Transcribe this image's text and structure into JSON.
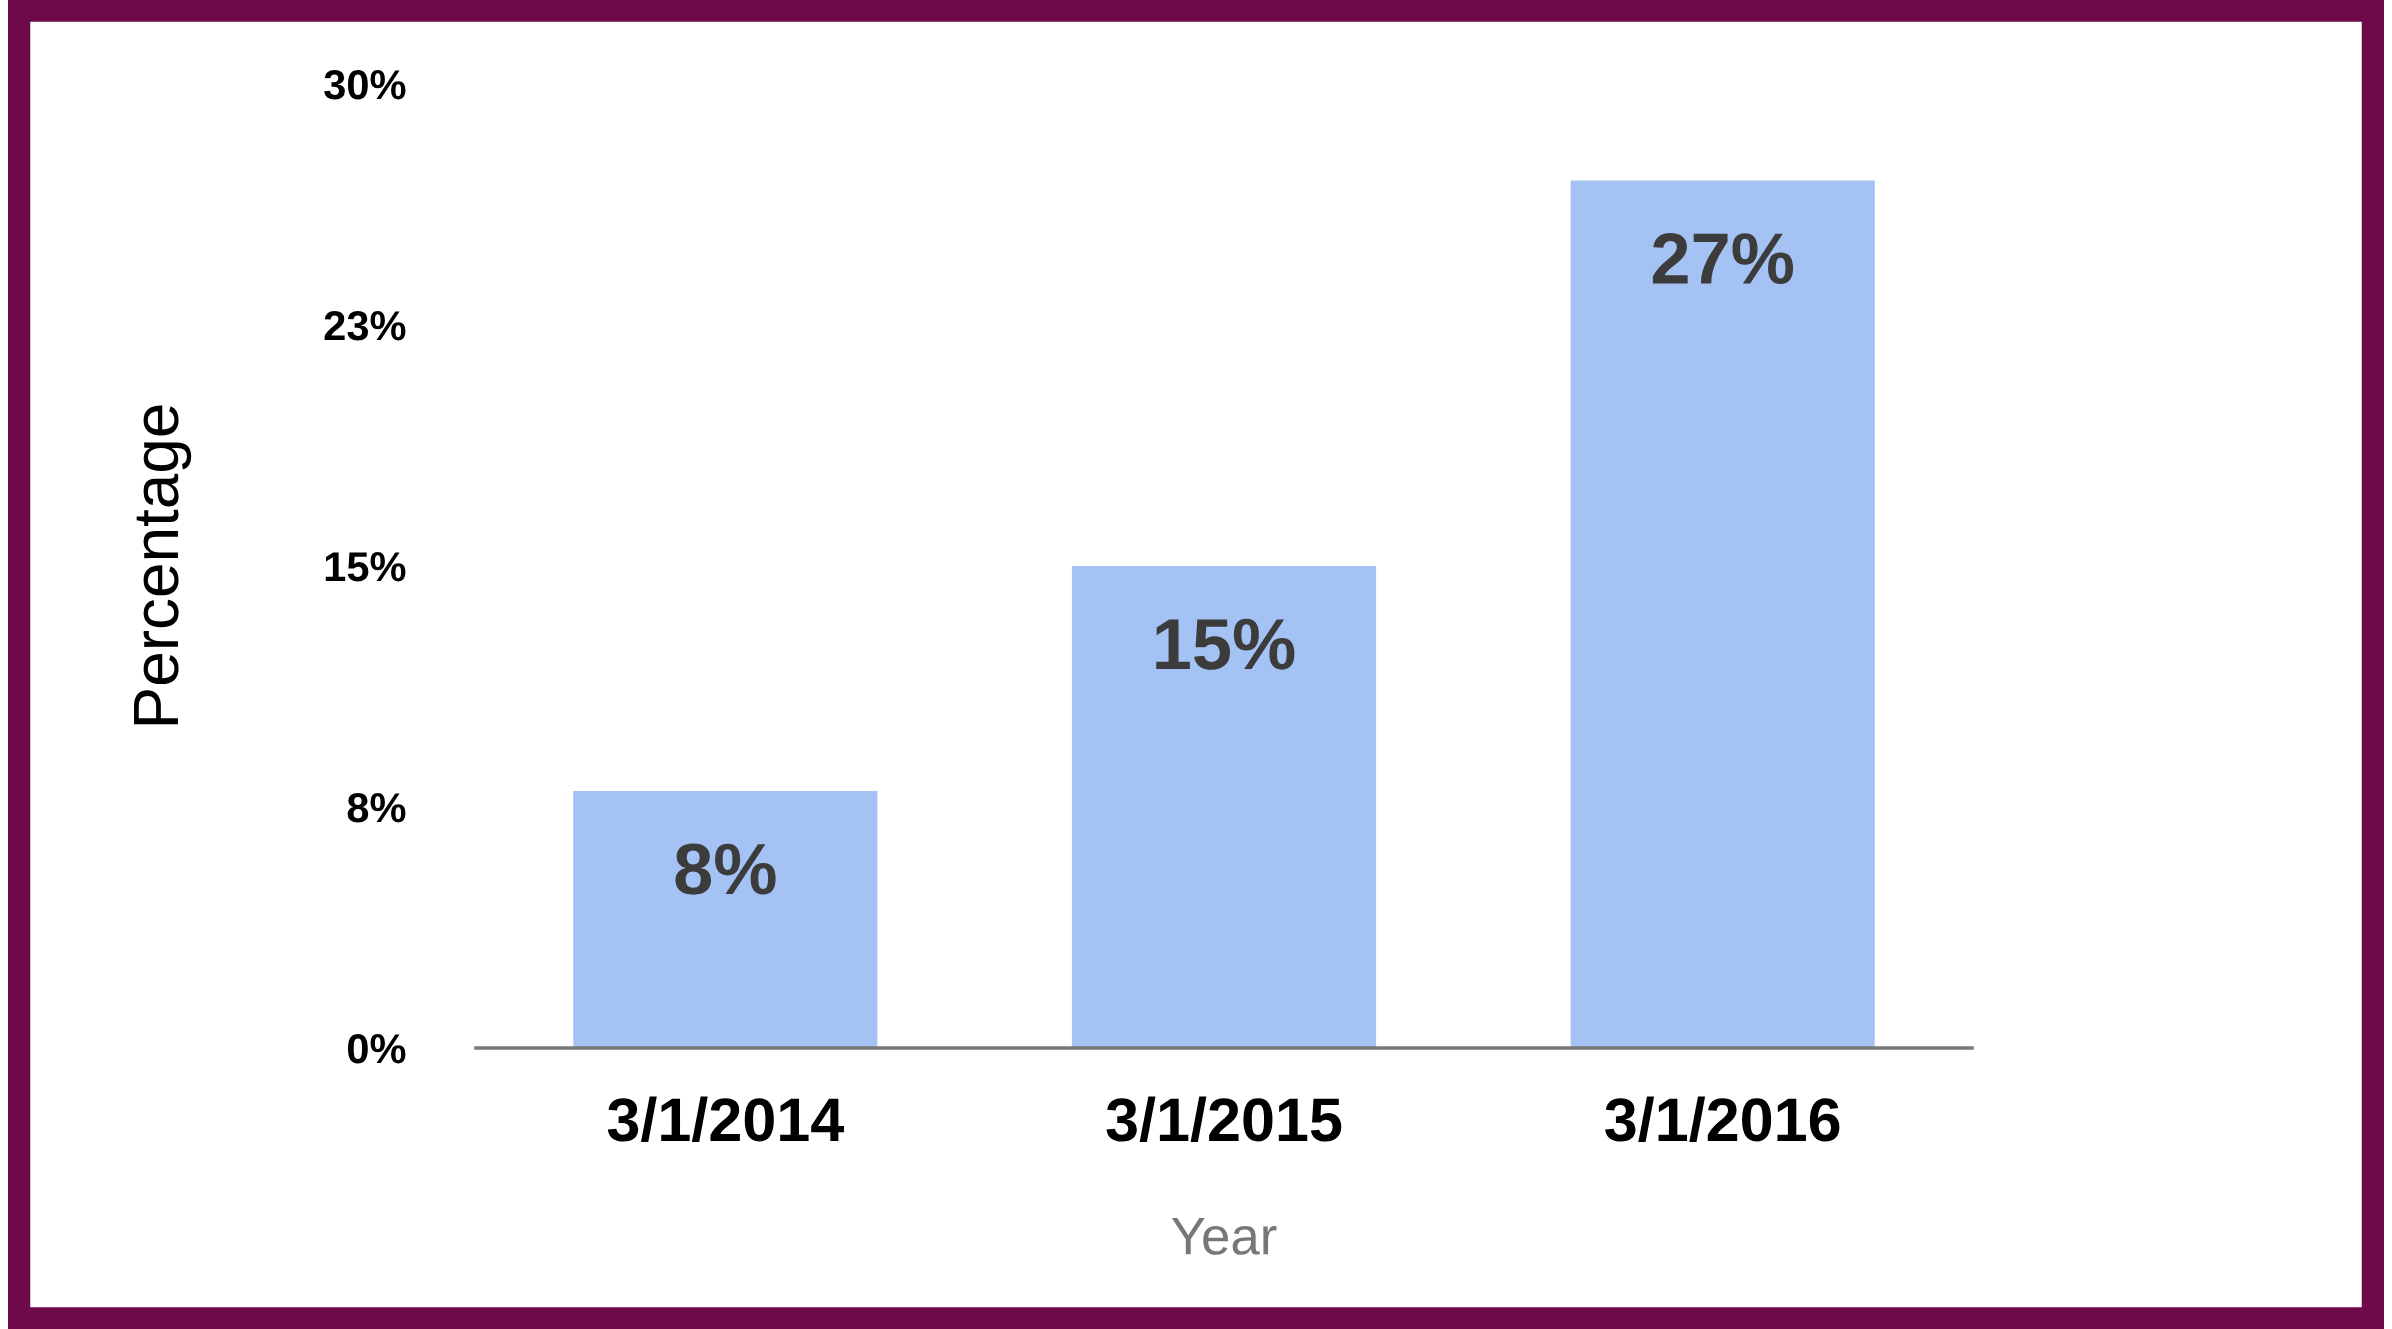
{
  "chart_data": {
    "type": "bar",
    "xlabel": "Year",
    "ylabel": "Percentage",
    "categories": [
      "3/1/2014",
      "3/1/2015",
      "3/1/2016"
    ],
    "values": [
      8,
      15,
      27
    ],
    "color": "#a4c2f4",
    "value_labels": [
      "8%",
      "15%",
      "27%"
    ],
    "ylim": [
      0,
      30
    ],
    "yticks": [
      {
        "value": 0,
        "label": "0%"
      },
      {
        "value": 7.5,
        "label": "8%"
      },
      {
        "value": 15,
        "label": "15%"
      },
      {
        "value": 22.5,
        "label": "23%"
      },
      {
        "value": 30,
        "label": "30%"
      }
    ],
    "grid": false
  }
}
